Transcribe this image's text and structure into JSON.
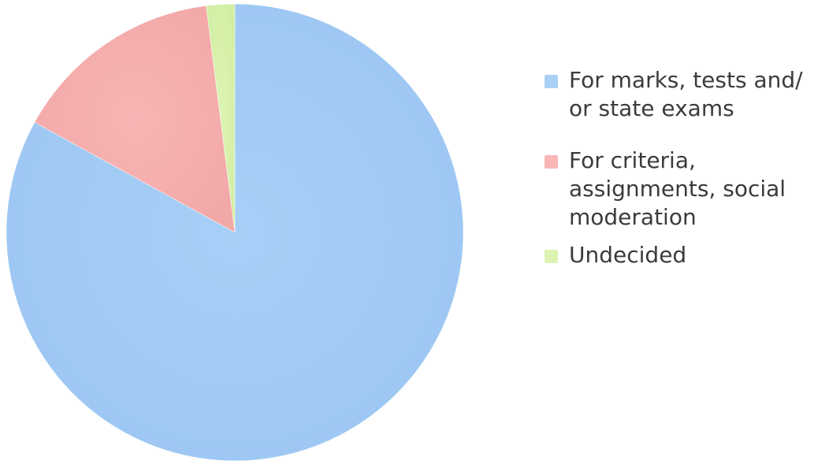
{
  "chart_data": {
    "type": "pie",
    "title": "",
    "categories": [
      "For marks, tests and/\nor state exams",
      "For criteria,\nassignments, social\nmoderation",
      "Undecided"
    ],
    "values": [
      83.0,
      15.0,
      2.0
    ],
    "colors": [
      "#a9d0f5",
      "#f8b6b6",
      "#dcf3b2"
    ],
    "legend_position": "right",
    "start_angle_deg": 0,
    "direction": "clockwise"
  }
}
